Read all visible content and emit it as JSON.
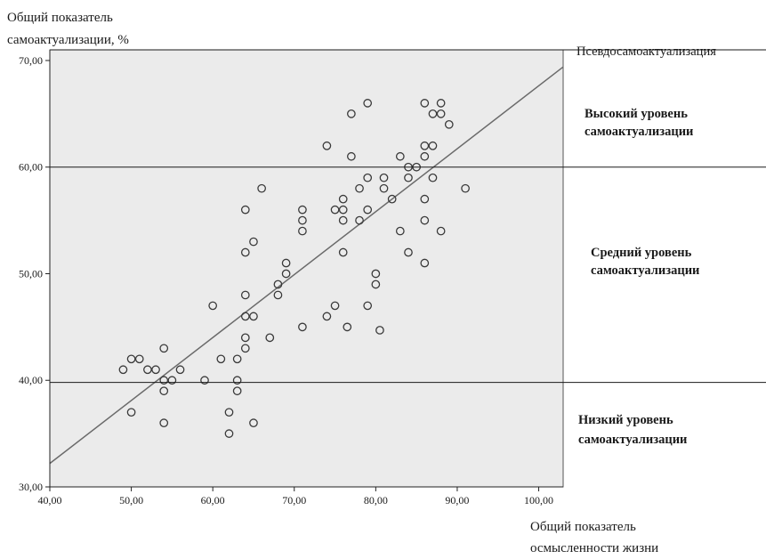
{
  "chart_data": {
    "type": "scatter",
    "title": "",
    "ylabel_lines": [
      "Общий показатель",
      "самоактуализации, %"
    ],
    "xlabel_lines": [
      "Общий показатель",
      "осмысленности жизни"
    ],
    "xlim": [
      40,
      103
    ],
    "ylim": [
      30,
      71
    ],
    "x_ticks": [
      "40,00",
      "50,00",
      "60,00",
      "70,00",
      "80,00",
      "90,00",
      "100,00"
    ],
    "y_ticks": [
      "30,00",
      "40,00",
      "50,00",
      "60,00",
      "70,00"
    ],
    "grid": false,
    "background": "#ebebeb",
    "point_color": "#3a3a3a",
    "regression_line": {
      "x": [
        40,
        103
      ],
      "y": [
        32.2,
        69.4
      ]
    },
    "zone_lines_y": [
      39.8,
      60.0,
      71.0
    ],
    "zones": [
      {
        "label_lines": [
          "Псевдосамоактуализация"
        ],
        "bold": false
      },
      {
        "label_lines": [
          "Высокий уровень",
          "самоактуализации"
        ],
        "bold": true
      },
      {
        "label_lines": [
          "Средний уровень",
          "самоактуализации"
        ],
        "bold": true
      },
      {
        "label_lines": [
          "Низкий уровень",
          "самоактуализации"
        ],
        "bold": true
      }
    ],
    "points": [
      [
        49,
        41
      ],
      [
        50,
        42
      ],
      [
        50,
        37
      ],
      [
        51,
        42
      ],
      [
        52,
        41
      ],
      [
        53,
        41
      ],
      [
        54,
        43
      ],
      [
        54,
        40
      ],
      [
        54,
        39
      ],
      [
        54,
        36
      ],
      [
        55,
        40
      ],
      [
        56,
        41
      ],
      [
        59,
        40
      ],
      [
        60,
        47
      ],
      [
        61,
        42
      ],
      [
        62,
        37
      ],
      [
        62,
        35
      ],
      [
        63,
        42
      ],
      [
        63,
        40
      ],
      [
        63,
        39
      ],
      [
        64,
        56
      ],
      [
        64,
        52
      ],
      [
        64,
        48
      ],
      [
        64,
        46
      ],
      [
        64,
        44
      ],
      [
        64,
        43
      ],
      [
        65,
        53
      ],
      [
        65,
        46
      ],
      [
        65,
        36
      ],
      [
        66,
        58
      ],
      [
        67,
        44
      ],
      [
        68,
        49
      ],
      [
        68,
        48
      ],
      [
        69,
        51
      ],
      [
        69,
        50
      ],
      [
        71,
        56
      ],
      [
        71,
        55
      ],
      [
        71,
        54
      ],
      [
        71,
        45
      ],
      [
        74,
        62
      ],
      [
        74,
        46
      ],
      [
        75,
        56
      ],
      [
        75,
        47
      ],
      [
        76,
        57
      ],
      [
        76,
        56
      ],
      [
        76,
        55
      ],
      [
        76,
        52
      ],
      [
        76.5,
        45
      ],
      [
        77,
        65
      ],
      [
        77,
        61
      ],
      [
        78,
        58
      ],
      [
        78,
        55
      ],
      [
        79,
        66
      ],
      [
        79,
        59
      ],
      [
        79,
        56
      ],
      [
        79,
        47
      ],
      [
        80,
        50
      ],
      [
        80,
        49
      ],
      [
        80.5,
        44.7
      ],
      [
        81,
        59
      ],
      [
        81,
        58
      ],
      [
        82,
        57
      ],
      [
        83,
        61
      ],
      [
        83,
        54
      ],
      [
        84,
        60
      ],
      [
        84,
        59
      ],
      [
        84,
        52
      ],
      [
        85,
        60
      ],
      [
        86,
        66
      ],
      [
        86,
        62
      ],
      [
        86,
        61
      ],
      [
        86,
        57
      ],
      [
        86,
        55
      ],
      [
        86,
        51
      ],
      [
        87,
        65
      ],
      [
        87,
        62
      ],
      [
        87,
        59
      ],
      [
        88,
        66
      ],
      [
        88,
        65
      ],
      [
        88,
        54
      ],
      [
        89,
        64
      ],
      [
        91,
        58
      ]
    ]
  }
}
